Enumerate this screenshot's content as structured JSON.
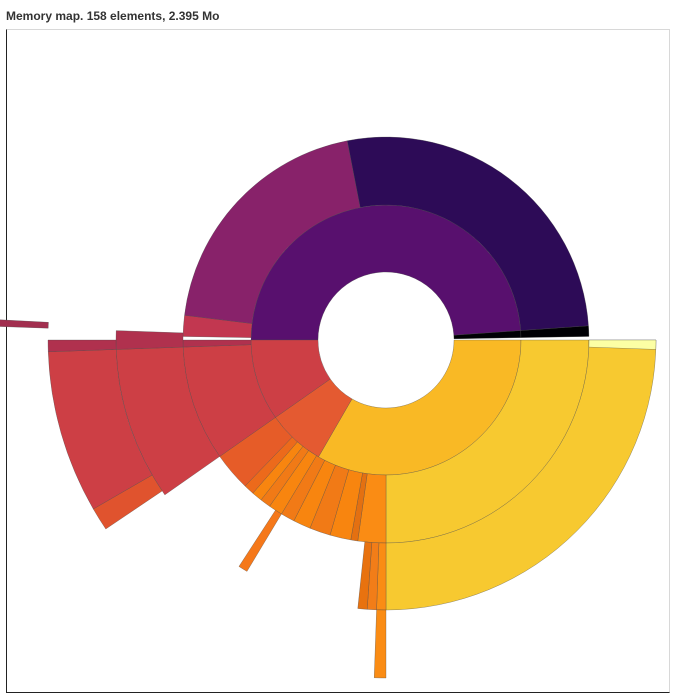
{
  "chart_data": {
    "type": "sunburst",
    "title": "Memory map. 158 elements, 2.395 Mo",
    "units": "degrees clockwise from 12 o'clock; radius level index",
    "segments": [
      {
        "group": "purple",
        "level": 1,
        "start": -90,
        "end": 86,
        "color": "#58106e"
      },
      {
        "group": "purple",
        "level": 2,
        "start": -89,
        "end": -83,
        "color": "#c23750"
      },
      {
        "group": "purple",
        "level": 2,
        "start": -83,
        "end": -11,
        "color": "#88226a"
      },
      {
        "group": "purple",
        "level": 2,
        "start": -11,
        "end": 86,
        "color": "#2d0b57"
      },
      {
        "group": "black",
        "level": 1,
        "start": 86,
        "end": 89,
        "color": "#000004"
      },
      {
        "group": "black",
        "level": 2,
        "start": 86,
        "end": 89,
        "color": "#000004"
      },
      {
        "group": "yellow",
        "level": 1,
        "start": 90,
        "end": 210,
        "color": "#f9b925"
      },
      {
        "group": "yellow",
        "level": 2,
        "start": 90,
        "end": 180,
        "color": "#f7c930"
      },
      {
        "group": "yellow",
        "level": 3,
        "start": 90,
        "end": 180,
        "color": "#f7c930"
      },
      {
        "group": "yellow",
        "level": 3,
        "start": 90,
        "end": 92,
        "color": "#fcffa4"
      },
      {
        "group": "orange",
        "level": 1,
        "start": 210,
        "end": 235,
        "color": "#e45a31"
      },
      {
        "group": "orange",
        "level": 2,
        "start": 180,
        "end": 188,
        "color": "#fa8c14"
      },
      {
        "group": "orange",
        "level": 2,
        "start": 188,
        "end": 190,
        "color": "#e47011"
      },
      {
        "group": "orange",
        "level": 2,
        "start": 190,
        "end": 196,
        "color": "#f8850f"
      },
      {
        "group": "orange",
        "level": 2,
        "start": 196,
        "end": 202,
        "color": "#f17a16"
      },
      {
        "group": "orange",
        "level": 2,
        "start": 202,
        "end": 207,
        "color": "#f8850f"
      },
      {
        "group": "orange",
        "level": 2,
        "start": 207,
        "end": 211,
        "color": "#f17a16"
      },
      {
        "group": "orange",
        "level": 2,
        "start": 211,
        "end": 215,
        "color": "#f8850f"
      },
      {
        "group": "orange",
        "level": 2,
        "start": 215,
        "end": 218,
        "color": "#f17a16"
      },
      {
        "group": "orange",
        "level": 2,
        "start": 218,
        "end": 221,
        "color": "#f8850f"
      },
      {
        "group": "orange",
        "level": 2,
        "start": 221,
        "end": 224,
        "color": "#ec6a1b"
      },
      {
        "group": "orange",
        "level": 2,
        "start": 224,
        "end": 235,
        "color": "#e65c28"
      },
      {
        "group": "orange",
        "level": 3,
        "start": 180,
        "end": 182,
        "color": "#fa8c14"
      },
      {
        "group": "orange",
        "level": 3,
        "start": 182,
        "end": 184,
        "color": "#f27d18"
      },
      {
        "group": "orange",
        "level": 3,
        "start": 184,
        "end": 186,
        "color": "#e8720f"
      },
      {
        "group": "orange",
        "level": 3,
        "start": 211,
        "end": 213,
        "color": "#f5781a"
      },
      {
        "group": "orange",
        "level": 4,
        "start": 180,
        "end": 182,
        "color": "#fa8c14"
      },
      {
        "group": "red",
        "level": 1,
        "start": 235,
        "end": 270,
        "color": "#cd3f45"
      },
      {
        "group": "red",
        "level": 2,
        "start": 235,
        "end": 268,
        "color": "#cd3f45"
      },
      {
        "group": "red",
        "level": 2,
        "start": 268,
        "end": 270,
        "color": "#b0314e"
      },
      {
        "group": "red",
        "level": 3,
        "start": 235,
        "end": 268,
        "color": "#cd3f45"
      },
      {
        "group": "red",
        "level": 3,
        "start": 268,
        "end": 272,
        "color": "#b0314e"
      },
      {
        "group": "red",
        "level": 4,
        "start": 236,
        "end": 240,
        "color": "#e0532e"
      },
      {
        "group": "red",
        "level": 4,
        "start": 240,
        "end": 268,
        "color": "#cd3f45"
      },
      {
        "group": "red",
        "level": 4,
        "start": 268,
        "end": 270,
        "color": "#b0314e"
      },
      {
        "group": "red",
        "level": 5,
        "start": 272,
        "end": 273,
        "color": "#a22f4f"
      }
    ]
  }
}
